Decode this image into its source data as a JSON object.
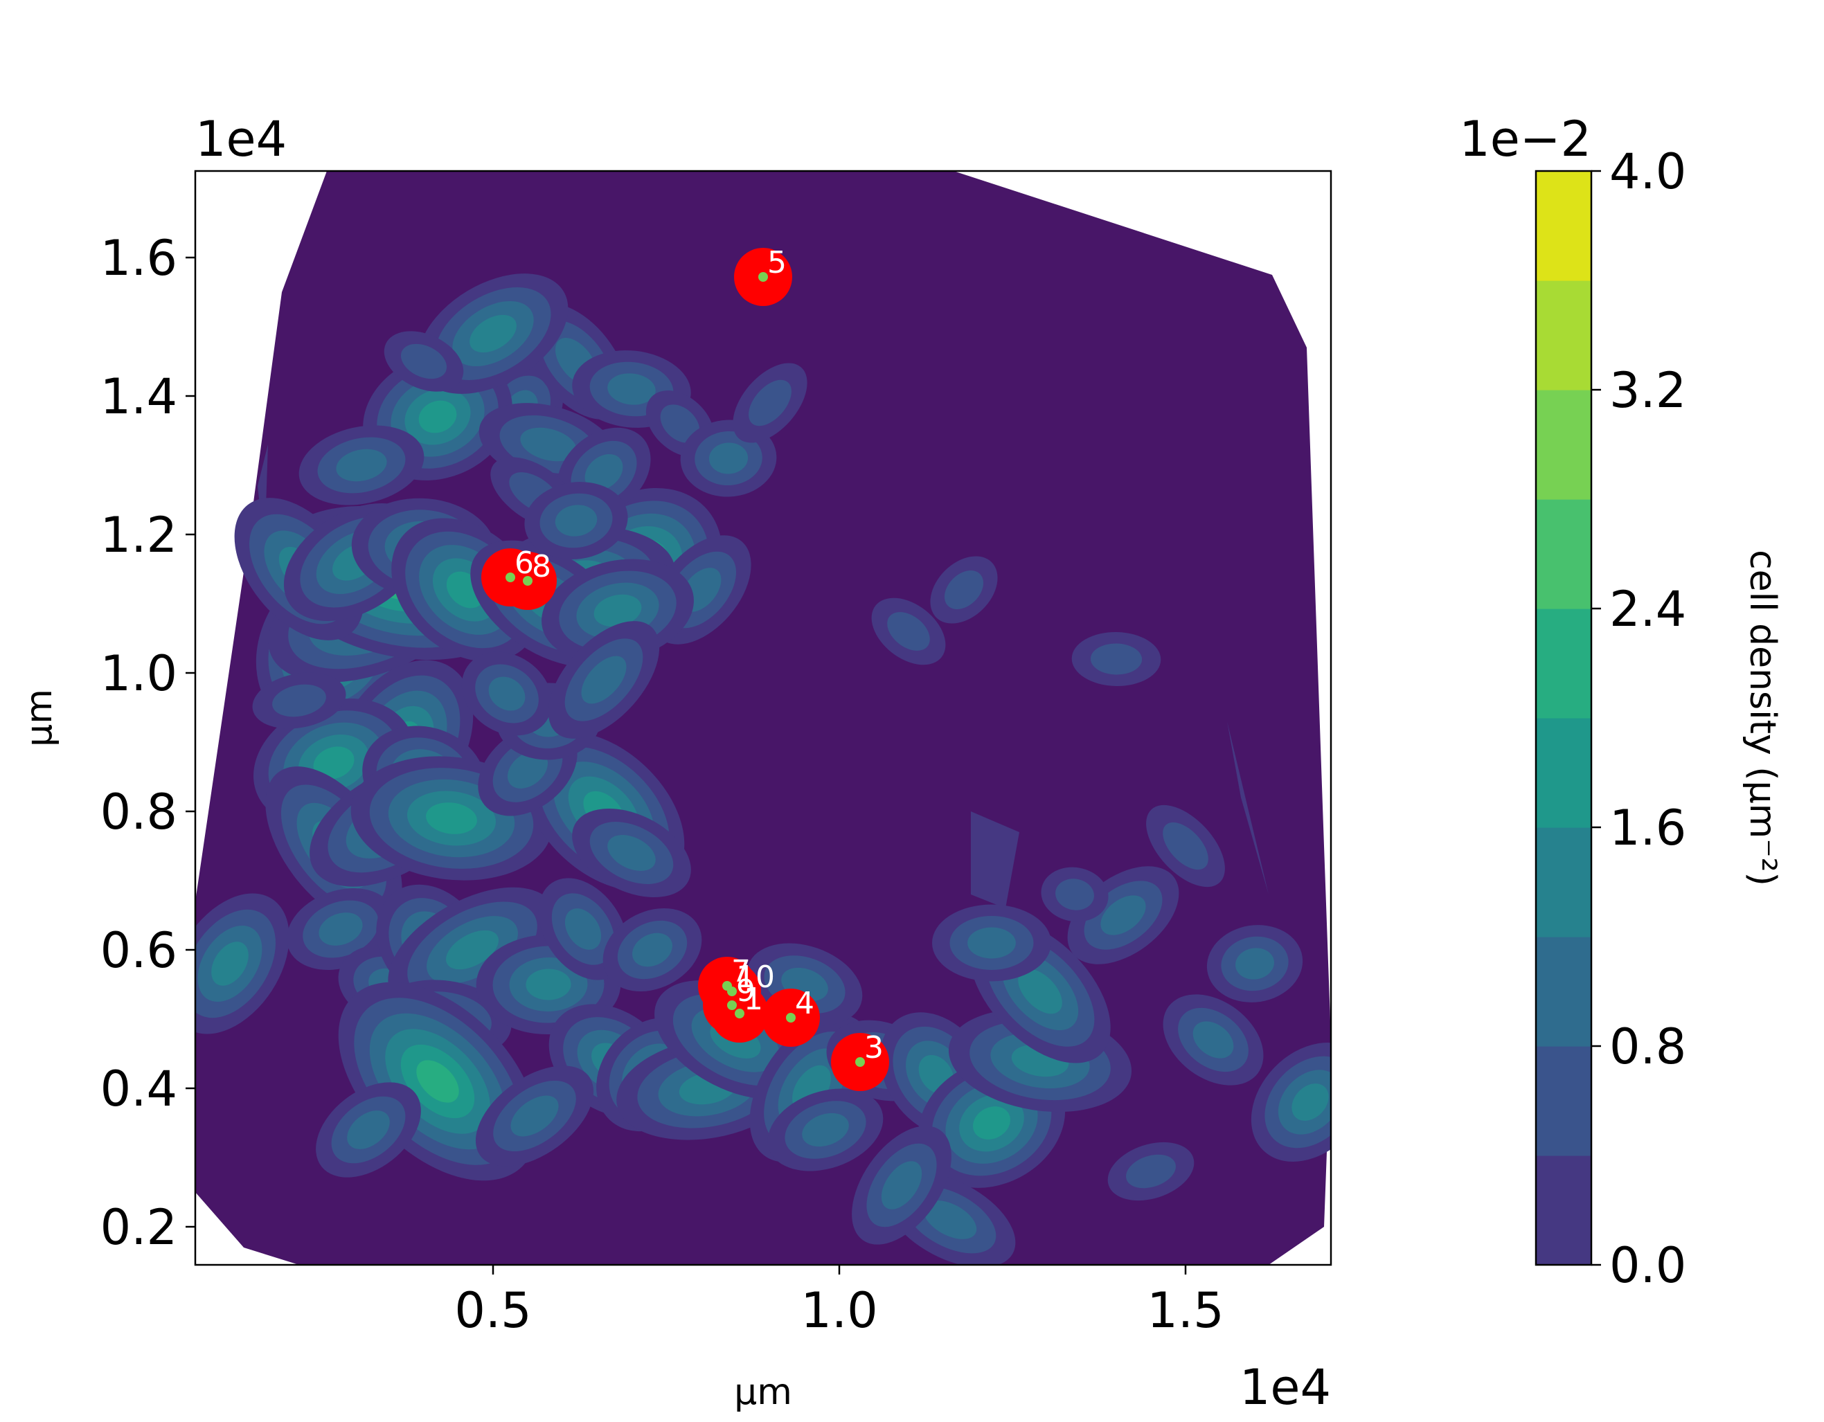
{
  "chart_data": {
    "type": "heatmap",
    "subtype": "filled-contour-density-with-hotspot-markers",
    "xlabel": "µm",
    "ylabel": "µm",
    "x_multiplier": "1e4",
    "y_multiplier": "1e4",
    "xlim": [
      0.07,
      1.71
    ],
    "ylim": [
      0.145,
      1.725
    ],
    "x_ticks": [
      0.5,
      1.0,
      1.5
    ],
    "x_tick_labels": [
      "0.5",
      "1.0",
      "1.5"
    ],
    "y_ticks": [
      0.2,
      0.4,
      0.6,
      0.8,
      1.0,
      1.2,
      1.4,
      1.6
    ],
    "y_tick_labels": [
      "0.2",
      "0.4",
      "0.6",
      "0.8",
      "1.0",
      "1.2",
      "1.4",
      "1.6"
    ],
    "hull": [
      [
        0.26,
        1.725
      ],
      [
        0.195,
        1.55
      ],
      [
        0.145,
        1.18
      ],
      [
        0.07,
        0.67
      ],
      [
        0.07,
        0.25
      ],
      [
        0.14,
        0.17
      ],
      [
        0.22,
        0.145
      ],
      [
        1.62,
        0.145
      ],
      [
        1.7,
        0.2
      ],
      [
        1.71,
        0.47
      ],
      [
        1.7,
        0.75
      ],
      [
        1.675,
        1.47
      ],
      [
        1.625,
        1.575
      ],
      [
        1.165,
        1.725
      ]
    ],
    "colorbar": {
      "label": "cell density (µm⁻²)",
      "multiplier": "1e−2",
      "range": [
        0.0,
        4.0
      ],
      "ticks": [
        0.0,
        0.8,
        1.6,
        2.4,
        3.2,
        4.0
      ],
      "tick_labels": [
        "0.0",
        "0.8",
        "1.6",
        "2.4",
        "3.2",
        "4.0"
      ],
      "levels": [
        0.0,
        0.4,
        0.8,
        1.2,
        1.6,
        2.0,
        2.4,
        2.8,
        3.2,
        3.6,
        4.0
      ],
      "colors": [
        "#481668",
        "#453882",
        "#3a548c",
        "#2f6c8e",
        "#26828e",
        "#1f988b",
        "#27ad81",
        "#48c16e",
        "#77d153",
        "#a8db34",
        "#dde318"
      ]
    },
    "background_color": "#481668",
    "density_blobs": [
      {
        "x": 0.27,
        "y": 1.04,
        "level": 6
      },
      {
        "x": 0.33,
        "y": 1.09,
        "level": 5
      },
      {
        "x": 0.36,
        "y": 1.13,
        "level": 6
      },
      {
        "x": 0.22,
        "y": 1.15,
        "level": 4
      },
      {
        "x": 0.3,
        "y": 1.16,
        "level": 4
      },
      {
        "x": 0.4,
        "y": 1.18,
        "level": 4
      },
      {
        "x": 0.46,
        "y": 1.12,
        "level": 5
      },
      {
        "x": 0.71,
        "y": 1.15,
        "level": 6
      },
      {
        "x": 0.63,
        "y": 1.14,
        "level": 4
      },
      {
        "x": 0.58,
        "y": 1.1,
        "level": 4
      },
      {
        "x": 0.8,
        "y": 1.12,
        "level": 3
      },
      {
        "x": 0.68,
        "y": 1.09,
        "level": 4
      },
      {
        "x": 0.48,
        "y": 1.42,
        "level": 4
      },
      {
        "x": 0.54,
        "y": 1.38,
        "level": 3
      },
      {
        "x": 0.42,
        "y": 1.37,
        "level": 5
      },
      {
        "x": 0.58,
        "y": 1.33,
        "level": 3
      },
      {
        "x": 0.62,
        "y": 1.45,
        "level": 3
      },
      {
        "x": 0.5,
        "y": 1.49,
        "level": 4
      },
      {
        "x": 0.7,
        "y": 1.41,
        "level": 3
      },
      {
        "x": 0.77,
        "y": 1.36,
        "level": 2
      },
      {
        "x": 0.66,
        "y": 1.29,
        "level": 3
      },
      {
        "x": 0.84,
        "y": 1.31,
        "level": 3
      },
      {
        "x": 0.56,
        "y": 1.26,
        "level": 2
      },
      {
        "x": 0.9,
        "y": 1.39,
        "level": 2
      },
      {
        "x": 0.31,
        "y": 1.3,
        "level": 3
      },
      {
        "x": 0.4,
        "y": 1.45,
        "level": 2
      },
      {
        "x": 0.37,
        "y": 0.9,
        "level": 5
      },
      {
        "x": 0.27,
        "y": 0.87,
        "level": 5
      },
      {
        "x": 0.4,
        "y": 0.85,
        "level": 4
      },
      {
        "x": 0.27,
        "y": 0.75,
        "level": 4
      },
      {
        "x": 0.35,
        "y": 0.78,
        "level": 4
      },
      {
        "x": 0.44,
        "y": 0.79,
        "level": 5
      },
      {
        "x": 0.66,
        "y": 0.8,
        "level": 5
      },
      {
        "x": 0.55,
        "y": 0.86,
        "level": 3
      },
      {
        "x": 0.58,
        "y": 0.93,
        "level": 3
      },
      {
        "x": 0.52,
        "y": 0.97,
        "level": 3
      },
      {
        "x": 0.66,
        "y": 0.99,
        "level": 3
      },
      {
        "x": 0.22,
        "y": 0.96,
        "level": 2
      },
      {
        "x": 0.7,
        "y": 0.74,
        "level": 3
      },
      {
        "x": 0.12,
        "y": 0.58,
        "level": 4
      },
      {
        "x": 0.28,
        "y": 0.63,
        "level": 3
      },
      {
        "x": 0.35,
        "y": 0.55,
        "level": 3
      },
      {
        "x": 0.41,
        "y": 0.61,
        "level": 4
      },
      {
        "x": 0.47,
        "y": 0.6,
        "level": 4
      },
      {
        "x": 0.43,
        "y": 0.5,
        "level": 3
      },
      {
        "x": 0.42,
        "y": 0.41,
        "level": 6
      },
      {
        "x": 0.32,
        "y": 0.34,
        "level": 3
      },
      {
        "x": 0.58,
        "y": 0.55,
        "level": 4
      },
      {
        "x": 0.67,
        "y": 0.44,
        "level": 4
      },
      {
        "x": 0.73,
        "y": 0.42,
        "level": 4
      },
      {
        "x": 0.81,
        "y": 0.4,
        "level": 4
      },
      {
        "x": 0.85,
        "y": 0.47,
        "level": 4
      },
      {
        "x": 0.96,
        "y": 0.4,
        "level": 4
      },
      {
        "x": 0.98,
        "y": 0.34,
        "level": 3
      },
      {
        "x": 1.06,
        "y": 0.44,
        "level": 3
      },
      {
        "x": 1.14,
        "y": 0.42,
        "level": 4
      },
      {
        "x": 1.22,
        "y": 0.35,
        "level": 5
      },
      {
        "x": 1.29,
        "y": 0.44,
        "level": 4
      },
      {
        "x": 1.29,
        "y": 0.54,
        "level": 4
      },
      {
        "x": 1.41,
        "y": 0.65,
        "level": 3
      },
      {
        "x": 1.22,
        "y": 0.61,
        "level": 3
      },
      {
        "x": 1.54,
        "y": 0.47,
        "level": 3
      },
      {
        "x": 1.68,
        "y": 0.38,
        "level": 4
      },
      {
        "x": 1.6,
        "y": 0.58,
        "level": 3
      },
      {
        "x": 1.16,
        "y": 0.21,
        "level": 3
      },
      {
        "x": 1.09,
        "y": 0.26,
        "level": 3
      },
      {
        "x": 1.45,
        "y": 0.28,
        "level": 2
      },
      {
        "x": 0.95,
        "y": 0.55,
        "level": 3
      },
      {
        "x": 0.63,
        "y": 0.63,
        "level": 3
      },
      {
        "x": 0.73,
        "y": 0.6,
        "level": 3
      },
      {
        "x": 1.34,
        "y": 0.68,
        "level": 2
      },
      {
        "x": 1.5,
        "y": 0.75,
        "level": 2
      },
      {
        "x": 0.56,
        "y": 0.36,
        "level": 3
      },
      {
        "x": 1.4,
        "y": 1.02,
        "level": 2
      },
      {
        "x": 1.1,
        "y": 1.06,
        "level": 2
      },
      {
        "x": 1.18,
        "y": 1.12,
        "level": 2
      },
      {
        "x": 0.62,
        "y": 1.22,
        "level": 3
      }
    ],
    "flat_patches": [
      {
        "points": [
          [
            1.19,
            0.8
          ],
          [
            1.26,
            0.77
          ],
          [
            1.24,
            0.66
          ],
          [
            1.19,
            0.68
          ]
        ],
        "level": 1
      },
      {
        "points": [
          [
            1.56,
            0.93
          ],
          [
            1.62,
            0.68
          ],
          [
            1.58,
            0.82
          ]
        ],
        "level": 1
      },
      {
        "points": [
          [
            0.16,
            1.27
          ],
          [
            0.175,
            1.33
          ],
          [
            0.17,
            1.18
          ]
        ],
        "level": 1
      }
    ],
    "hotspots": [
      {
        "label": "1",
        "x": 0.856,
        "y": 0.508
      },
      {
        "label": "3",
        "x": 1.03,
        "y": 0.438
      },
      {
        "label": "4",
        "x": 0.93,
        "y": 0.502
      },
      {
        "label": "5",
        "x": 0.89,
        "y": 1.572
      },
      {
        "label": "6",
        "x": 0.525,
        "y": 1.138
      },
      {
        "label": "7",
        "x": 0.838,
        "y": 0.548
      },
      {
        "label": "8",
        "x": 0.55,
        "y": 1.133
      },
      {
        "label": "9",
        "x": 0.845,
        "y": 0.52
      },
      {
        "label": "10",
        "x": 0.845,
        "y": 0.54
      }
    ],
    "hotspot_color": "#ff0000"
  }
}
